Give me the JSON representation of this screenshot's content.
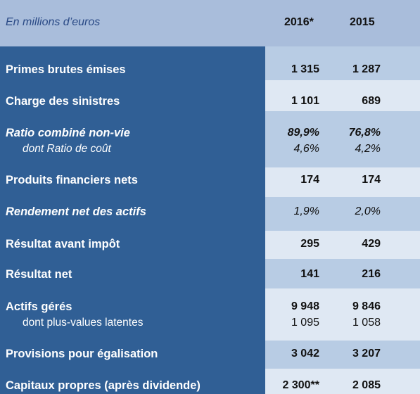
{
  "header": {
    "unit_label": "En millions d’euros",
    "col_2016": "2016*",
    "col_2015": "2015"
  },
  "rows": [
    {
      "label": "Primes brutes émises",
      "v2016": "1 315",
      "v2015": "1 287"
    },
    {
      "label": "Charge des sinistres",
      "v2016": "1 101",
      "v2015": "689"
    },
    {
      "label": "Ratio combiné  non-vie",
      "v2016": "89,9%",
      "v2015": "76,8%",
      "sub_label": "dont Ratio de coût",
      "sub_v2016": "4,6%",
      "sub_v2015": "4,2%"
    },
    {
      "label": "Produits financiers nets",
      "v2016": "174",
      "v2015": "174"
    },
    {
      "label": "Rendement net des actifs",
      "v2016": "1,9%",
      "v2015": "2,0%"
    },
    {
      "label": "Résultat avant impôt",
      "v2016": "295",
      "v2015": "429"
    },
    {
      "label": "Résultat net",
      "v2016": "141",
      "v2015": "216"
    },
    {
      "label": "Actifs gérés",
      "v2016": "9 948",
      "v2015": "9 846",
      "sub_label": "dont plus-values latentes",
      "sub_v2016": "1 095",
      "sub_v2015": "1 058"
    },
    {
      "label": "Provisions pour égalisation",
      "v2016": "3 042",
      "v2015": "3 207"
    },
    {
      "label": "Capitaux propres (après dividende)",
      "v2016": "2 300**",
      "v2015": "2 085"
    }
  ],
  "colors": {
    "header_bg": "#a9bddb",
    "label_bg": "#305f95",
    "value_light": "#dfe8f3",
    "value_med": "#b8cce4"
  }
}
